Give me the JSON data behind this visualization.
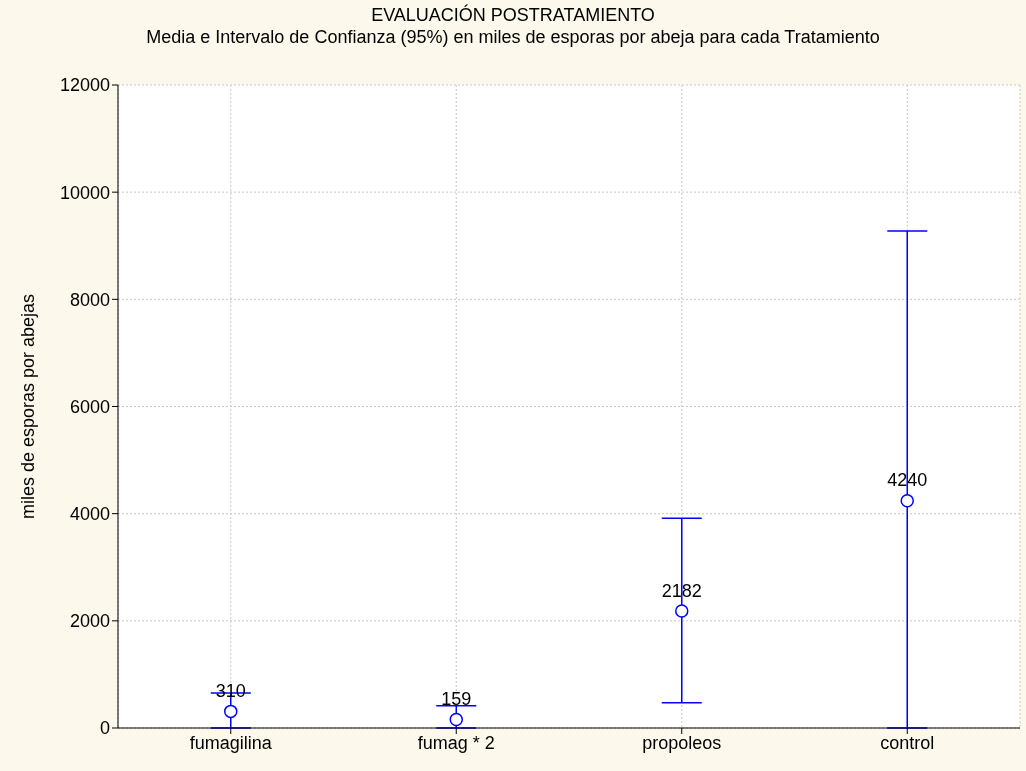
{
  "chart_data": {
    "type": "scatter",
    "title": "EVALUACIÓN POSTRATAMIENTO",
    "subtitle": "Media e Intervalo de Confianza (95%) en miles de esporas por abeja para cada Tratamiento",
    "ylabel": "miles de esporas por abejas",
    "categories": [
      "fumagilina",
      "fumag * 2",
      "propoleos",
      "control"
    ],
    "values": [
      310,
      159,
      2182,
      4240
    ],
    "errors": [
      [
        0,
        653
      ],
      [
        0,
        416
      ],
      [
        472,
        3913
      ],
      [
        0,
        9274
      ]
    ],
    "color": "#0000ff",
    "marker": "circle",
    "data_labels": true,
    "ylim": [
      0,
      12000
    ],
    "yticks": [
      0,
      2000,
      4000,
      6000,
      8000,
      10000,
      12000
    ],
    "grid": true
  }
}
